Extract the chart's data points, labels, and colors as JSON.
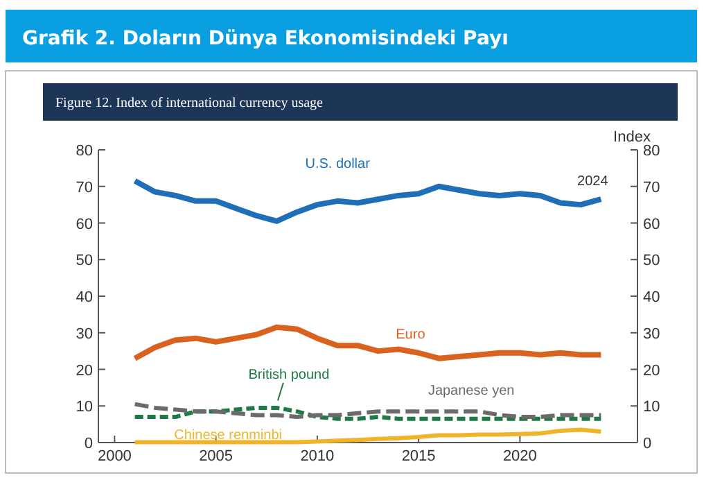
{
  "chart_data": {
    "type": "line",
    "title": "Grafik 2. Doların Dünya Ekonomisindeki Payı",
    "subtitle": "Figure 12. Index of international currency usage",
    "y2label": "Index",
    "x": [
      2001,
      2002,
      2003,
      2004,
      2005,
      2006,
      2007,
      2008,
      2009,
      2010,
      2011,
      2012,
      2013,
      2014,
      2015,
      2016,
      2017,
      2018,
      2019,
      2020,
      2021,
      2022,
      2023,
      2024
    ],
    "series": [
      {
        "name": "U.S. dollar",
        "color": "#1f6fb8",
        "line_style": "solid",
        "values": [
          71.5,
          68.5,
          67.5,
          66,
          66,
          64,
          62,
          60.5,
          63,
          65,
          66,
          65.5,
          66.5,
          67.5,
          68,
          70,
          69,
          68,
          67.5,
          68,
          67.5,
          65.5,
          65,
          66.5
        ]
      },
      {
        "name": "Euro",
        "color": "#d9621f",
        "line_style": "solid",
        "values": [
          23,
          26,
          28,
          28.5,
          27.5,
          28.5,
          29.5,
          31.5,
          31,
          28.5,
          26.5,
          26.5,
          25,
          25.5,
          24.5,
          23,
          23.5,
          24,
          24.5,
          24.5,
          24,
          24.5,
          24,
          24
        ]
      },
      {
        "name": "British pound",
        "color": "#1e7a45",
        "line_style": "dashed",
        "values": [
          7,
          7,
          7,
          8.5,
          8.5,
          9,
          9.5,
          9.5,
          8.5,
          7,
          6.5,
          6.5,
          7,
          6.5,
          6.5,
          6.5,
          6.5,
          6.5,
          6.5,
          6.5,
          6.5,
          6.5,
          6.5,
          6.5
        ]
      },
      {
        "name": "Japanese yen",
        "color": "#6b6b6b",
        "line_style": "dashed",
        "values": [
          10.5,
          9.5,
          9,
          8.5,
          8.5,
          8,
          7.5,
          7.5,
          7,
          7.5,
          7.5,
          8,
          8.5,
          8.5,
          8.5,
          8.5,
          8.5,
          8.5,
          7.5,
          7,
          7,
          7.5,
          7.5,
          7.5
        ]
      },
      {
        "name": "Chinese renminbi",
        "color": "#f0b429",
        "line_style": "solid",
        "values": [
          0.1,
          0.1,
          0.1,
          0.1,
          0.1,
          0.1,
          0.1,
          0.1,
          0.1,
          0.3,
          0.5,
          0.7,
          1,
          1.2,
          1.5,
          2,
          2,
          2.2,
          2.2,
          2.3,
          2.5,
          3.2,
          3.5,
          3
        ]
      }
    ],
    "annotations": [
      {
        "text": "2024",
        "x": 2024,
        "y": 66.5
      }
    ],
    "xlim": [
      1999.2,
      2025.8
    ],
    "xticks": [
      2000,
      2005,
      2010,
      2015,
      2020
    ],
    "ylim": [
      0,
      80
    ],
    "yticks": [
      0,
      10,
      20,
      30,
      40,
      50,
      60,
      70,
      80
    ],
    "y2lim": [
      0,
      80
    ],
    "y2ticks": [
      0,
      10,
      20,
      30,
      40,
      50,
      60,
      70,
      80
    ],
    "grid": false
  }
}
